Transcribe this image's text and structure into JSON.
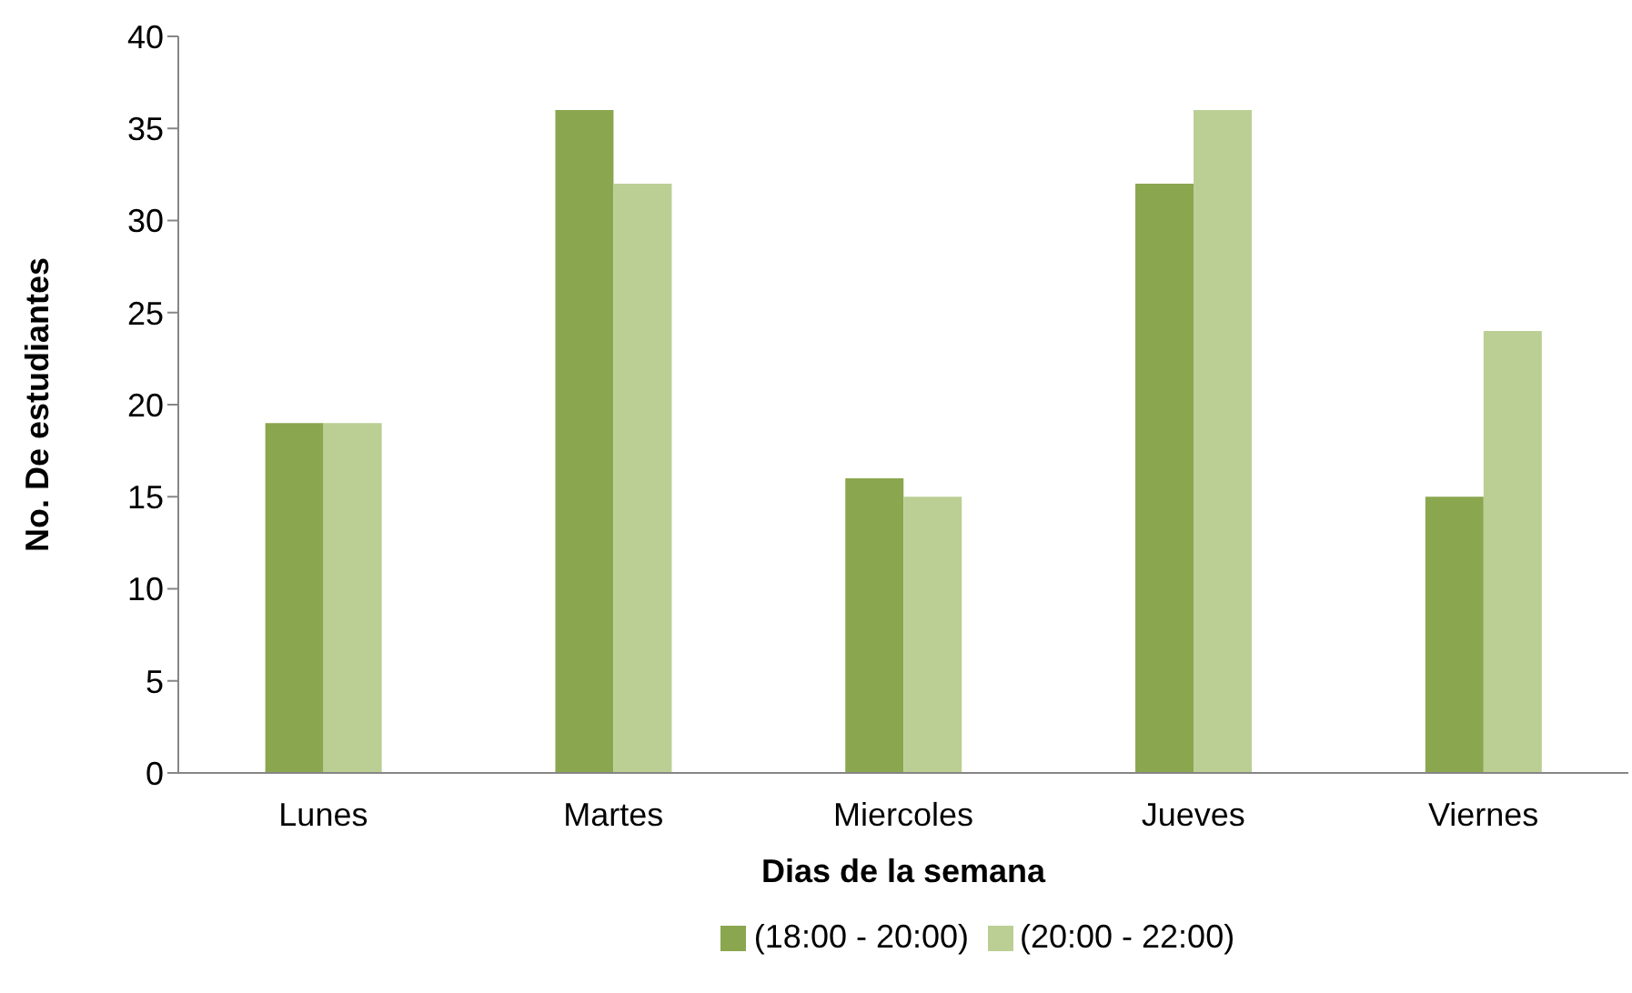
{
  "chart_data": {
    "type": "bar",
    "xlabel": "Dias de la semana",
    "ylabel": "No. De estudiantes",
    "categories": [
      "Lunes",
      "Martes",
      "Miercoles",
      "Jueves",
      "Viernes"
    ],
    "series": [
      {
        "name": "(18:00 - 20:00)",
        "color": "#8aa64f",
        "values": [
          19,
          36,
          16,
          32,
          15
        ]
      },
      {
        "name": "(20:00 - 22:00)",
        "color": "#bbcf94",
        "values": [
          19,
          32,
          15,
          36,
          24
        ]
      }
    ],
    "ylim": [
      0,
      40
    ],
    "yticks": [
      0,
      5,
      10,
      15,
      20,
      25,
      30,
      35,
      40
    ],
    "grid": false,
    "legend": "bottom"
  }
}
